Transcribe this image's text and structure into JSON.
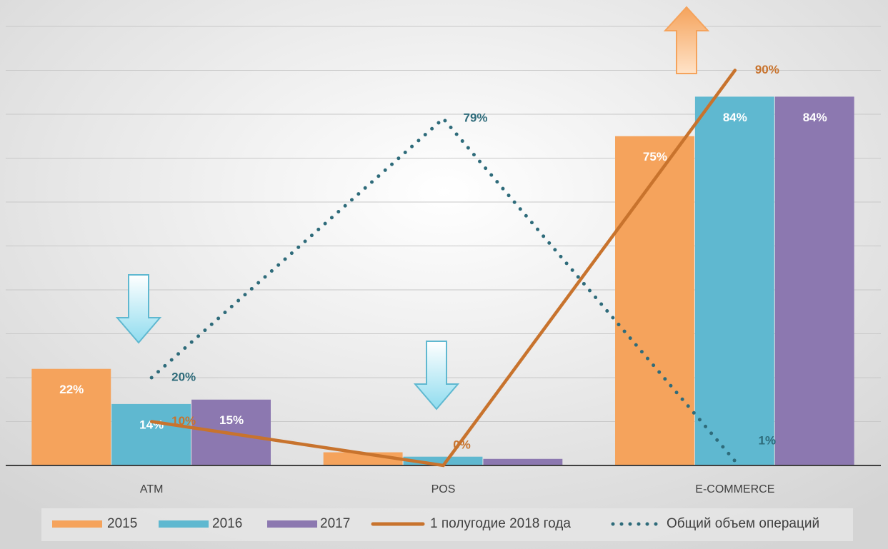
{
  "chart_data": {
    "type": "bar",
    "categories": [
      "ATM",
      "POS",
      "E-COMMERCE"
    ],
    "ylim": [
      0,
      100
    ],
    "yticks": [
      0,
      10,
      20,
      30,
      40,
      50,
      60,
      70,
      80,
      90,
      100
    ],
    "grid": true,
    "series": [
      {
        "name": "2015",
        "type": "bar",
        "color": "#f5a35c",
        "values": [
          22,
          3,
          75
        ],
        "value_labels": [
          "22%",
          null,
          "75%"
        ]
      },
      {
        "name": "2016",
        "type": "bar",
        "color": "#5fb8d0",
        "values": [
          14,
          2,
          84
        ],
        "value_labels": [
          "14%",
          null,
          "84%"
        ]
      },
      {
        "name": "2017",
        "type": "bar",
        "color": "#8c78b0",
        "values": [
          15,
          1.5,
          84
        ],
        "value_labels": [
          "15%",
          null,
          "84%"
        ]
      },
      {
        "name": "1 полугодие 2018 года",
        "type": "line",
        "color": "#c8732d",
        "line_style": "solid",
        "values": [
          10,
          0,
          90
        ],
        "value_labels": [
          "10%",
          "0%",
          "90%"
        ]
      },
      {
        "name": "Общий объем операций",
        "type": "line",
        "color": "#2e6b7a",
        "line_style": "dotted",
        "values": [
          20,
          79,
          1
        ],
        "value_labels": [
          "20%",
          "79%",
          "1%"
        ]
      }
    ],
    "legend": "bottom"
  }
}
